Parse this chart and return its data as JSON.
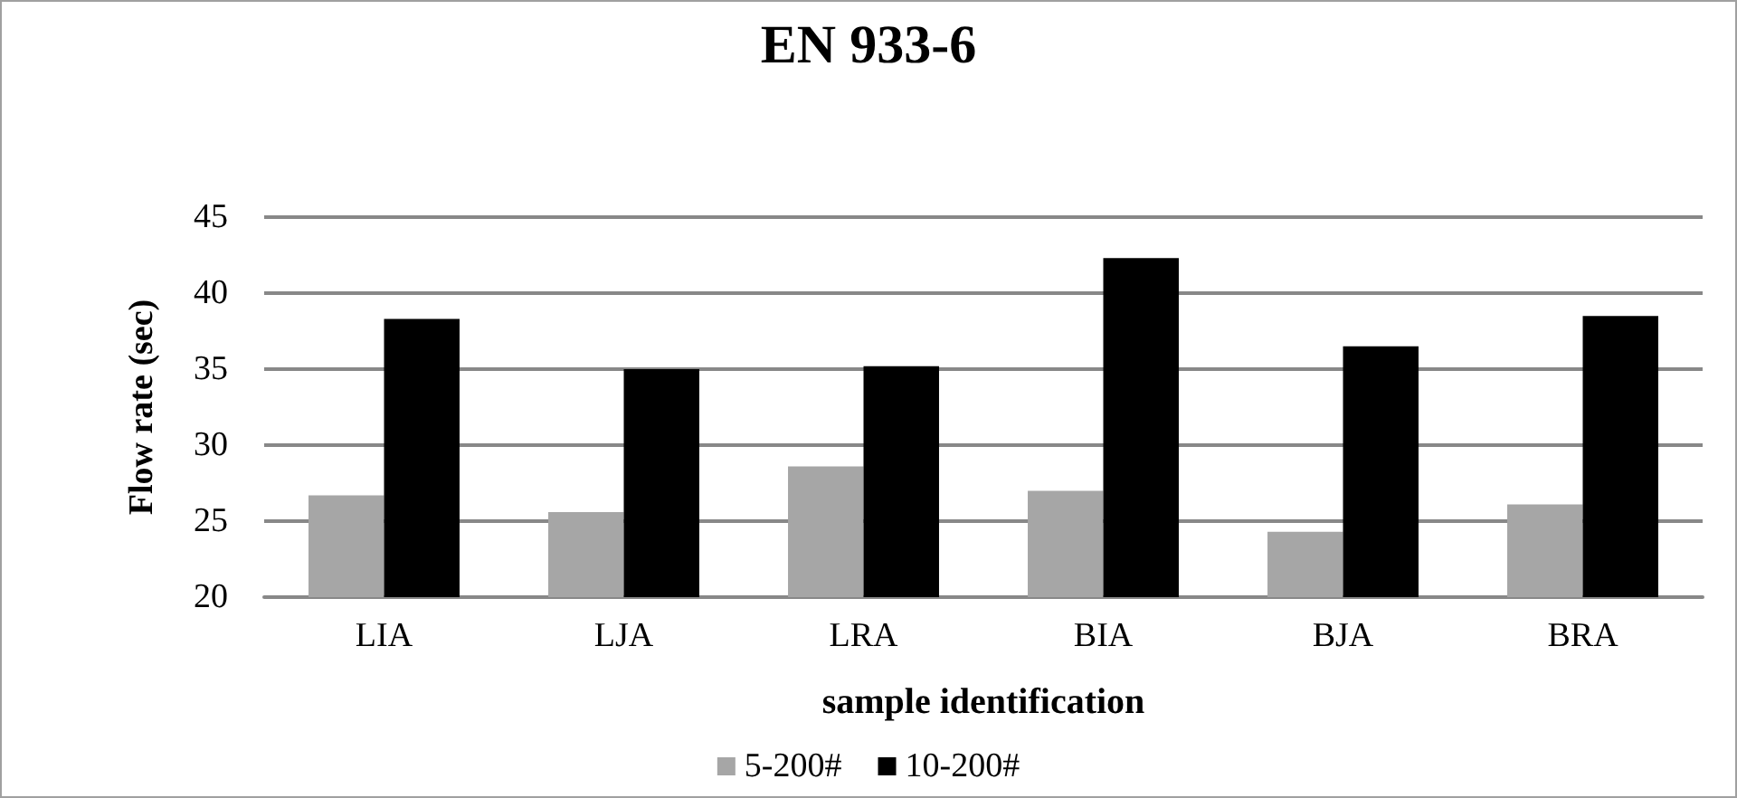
{
  "chart_data": {
    "type": "bar",
    "title": "EN 933-6",
    "xlabel": "sample identification",
    "ylabel": "Flow rate (sec)",
    "categories": [
      "LIA",
      "LJA",
      "LRA",
      "BIA",
      "BJA",
      "BRA"
    ],
    "series": [
      {
        "name": "5-200#",
        "color": "#a6a6a6",
        "values": [
          26.7,
          25.6,
          28.6,
          27.0,
          24.3,
          26.1
        ]
      },
      {
        "name": "10-200#",
        "color": "#000000",
        "values": [
          38.3,
          35.0,
          35.2,
          42.3,
          36.5,
          38.5
        ]
      }
    ],
    "ylim": [
      20,
      45
    ],
    "yticks": [
      20,
      25,
      30,
      35,
      40,
      45
    ],
    "grid": "y",
    "legend": "bottom"
  }
}
